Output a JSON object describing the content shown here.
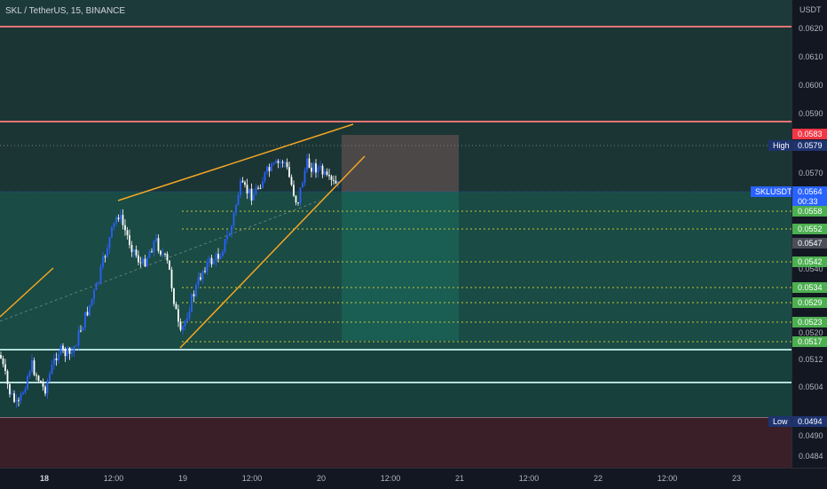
{
  "header": {
    "title": "SKL / TetherUS, 15, BINANCE"
  },
  "colors": {
    "background": "#131722",
    "up_candle": "#2962ff",
    "down_candle": "#ffffff",
    "trendline": "#f5a623",
    "resistance": "#e57373",
    "support": "#b2dfdb",
    "upper_zone": "#1d3a3a",
    "target_zone": "#1a4b44",
    "low_zone": "#3a1e28",
    "tag_green": "#4caf50",
    "tag_red": "#f23645",
    "tag_blue": "#2962ff",
    "tag_navy": "#1e3370"
  },
  "price_axis": {
    "unit": "USDT",
    "ticks": [
      "0.0620",
      "0.0610",
      "0.0600",
      "0.0590",
      "0.0570",
      "0.0540",
      "0.0520",
      "0.0512",
      "0.0504",
      "0.0490",
      "0.0484"
    ]
  },
  "time_axis": {
    "labels": [
      "18",
      "12:00",
      "19",
      "12:00",
      "20",
      "12:00",
      "21",
      "12:00",
      "22",
      "12:00",
      "23"
    ]
  },
  "price_tags": {
    "red_tag": "0.0583",
    "high_value": "0.0579",
    "current_price": "0.0564",
    "countdown": "00:33",
    "gray_tag": "0.0547",
    "low_value": "0.0494",
    "green_tags": [
      "0.0558",
      "0.0552",
      "0.0542",
      "0.0534",
      "0.0529",
      "0.0523",
      "0.0517"
    ]
  },
  "side_labels": {
    "high": "High",
    "symbol": "SKLUSDT",
    "low": "Low"
  },
  "chart_data": {
    "type": "candlestick",
    "symbol": "SKL / TetherUS",
    "interval": "15",
    "exchange": "BINANCE",
    "ylim": [
      0.0481,
      0.0626
    ],
    "x_labels": [
      "18",
      "12:00",
      "19",
      "12:00",
      "20",
      "12:00",
      "21",
      "12:00",
      "22",
      "12:00",
      "23"
    ],
    "horizontal_levels": {
      "resistance": [
        0.0621,
        0.0587
      ],
      "support": [
        0.0514,
        0.0504,
        0.0494
      ]
    },
    "target_levels": [
      0.0558,
      0.0552,
      0.0542,
      0.0534,
      0.0529,
      0.0523,
      0.0517
    ],
    "current_price": 0.0564,
    "session_high": 0.0579,
    "session_low": 0.0494
  }
}
